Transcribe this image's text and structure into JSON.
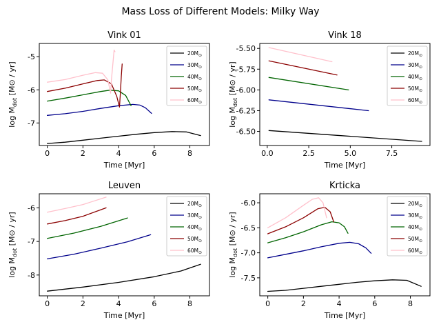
{
  "figure": {
    "suptitle": "Mass Loss of Different Models: Milky Way"
  },
  "chart_data": [
    {
      "type": "line",
      "title": "Vink 01",
      "xlabel": "Time [Myr]",
      "ylabel": "log M_dot [M_sun / yr]",
      "xlim": [
        -0.45,
        9.1
      ],
      "ylim": [
        -7.68,
        -4.6
      ],
      "xticks": [
        0,
        2,
        4,
        6,
        8
      ],
      "xtick_labels": [
        "0",
        "2",
        "4",
        "6",
        "8"
      ],
      "yticks": [
        -7,
        -6,
        -5
      ],
      "ytick_labels": [
        "-7",
        "-6",
        "-5"
      ],
      "grid": false,
      "legend_position": "top-right",
      "series": [
        {
          "name": "20",
          "color": "#000000",
          "x": [
            0,
            1,
            2,
            3,
            4,
            5,
            6,
            7,
            7.8,
            8.6
          ],
          "y": [
            -7.62,
            -7.58,
            -7.52,
            -7.46,
            -7.4,
            -7.34,
            -7.29,
            -7.26,
            -7.27,
            -7.38
          ]
        },
        {
          "name": "30",
          "color": "#00008b",
          "x": [
            0,
            1,
            2,
            3,
            4,
            4.8,
            5.2,
            5.5,
            5.85
          ],
          "y": [
            -6.77,
            -6.72,
            -6.65,
            -6.56,
            -6.48,
            -6.44,
            -6.46,
            -6.54,
            -6.71
          ]
        },
        {
          "name": "40",
          "color": "#006400",
          "x": [
            0,
            1,
            2,
            3,
            3.5,
            4.0,
            4.4,
            4.7
          ],
          "y": [
            -6.34,
            -6.25,
            -6.15,
            -6.05,
            -6.01,
            -6.03,
            -6.17,
            -6.48
          ]
        },
        {
          "name": "50",
          "color": "#8b0000",
          "x": [
            0,
            1,
            2,
            2.8,
            3.2,
            3.6,
            3.9,
            4.05,
            4.1,
            4.15,
            4.2
          ],
          "y": [
            -6.05,
            -5.95,
            -5.82,
            -5.72,
            -5.7,
            -5.82,
            -6.2,
            -6.52,
            -6.1,
            -5.6,
            -5.22
          ]
        },
        {
          "name": "60",
          "color": "#ffc0cb",
          "x": [
            0,
            1,
            2,
            2.7,
            3.1,
            3.4,
            3.55,
            3.6,
            3.7,
            3.75,
            3.8
          ],
          "y": [
            -5.77,
            -5.69,
            -5.56,
            -5.48,
            -5.5,
            -5.7,
            -6.1,
            -5.7,
            -5.1,
            -4.8,
            -4.85
          ]
        }
      ]
    },
    {
      "type": "line",
      "title": "Vink 18",
      "xlabel": "Time [Myr]",
      "ylabel": "log M_dot [M_sun / yr]",
      "xlim": [
        -0.45,
        9.8
      ],
      "ylim": [
        -6.67,
        -5.44
      ],
      "xticks": [
        0,
        2.5,
        5,
        7.5
      ],
      "xtick_labels": [
        "0.0",
        "2.5",
        "5.0",
        "7.5"
      ],
      "yticks": [
        -6.5,
        -6.25,
        -6.0,
        -5.75,
        -5.5
      ],
      "ytick_labels": [
        "-6.50",
        "-6.25",
        "-6.00",
        "-5.75",
        "-5.50"
      ],
      "grid": false,
      "legend_position": "top-right",
      "series": [
        {
          "name": "20",
          "color": "#000000",
          "x": [
            0.1,
            9.3
          ],
          "y": [
            -6.49,
            -6.62
          ]
        },
        {
          "name": "30",
          "color": "#00008b",
          "x": [
            0.1,
            6.1
          ],
          "y": [
            -6.12,
            -6.25
          ]
        },
        {
          "name": "40",
          "color": "#006400",
          "x": [
            0.1,
            4.9
          ],
          "y": [
            -5.85,
            -6.0
          ]
        },
        {
          "name": "50",
          "color": "#8b0000",
          "x": [
            0.1,
            4.2
          ],
          "y": [
            -5.65,
            -5.82
          ]
        },
        {
          "name": "60",
          "color": "#ffc0cb",
          "x": [
            0.1,
            3.9
          ],
          "y": [
            -5.49,
            -5.66
          ]
        }
      ]
    },
    {
      "type": "line",
      "title": "Leuven",
      "xlabel": "Time [Myr]",
      "ylabel": "log M_dot [M_sun / yr]",
      "xlim": [
        -0.45,
        9.1
      ],
      "ylim": [
        -8.62,
        -5.58
      ],
      "xticks": [
        0,
        2,
        4,
        6,
        8
      ],
      "xtick_labels": [
        "0",
        "2",
        "4",
        "6",
        "8"
      ],
      "yticks": [
        -8,
        -7,
        -6
      ],
      "ytick_labels": [
        "-8",
        "-7",
        "-6"
      ],
      "grid": false,
      "legend_position": "top-right",
      "series": [
        {
          "name": "20",
          "color": "#000000",
          "x": [
            0,
            2,
            4,
            6,
            7.5,
            8.6
          ],
          "y": [
            -8.48,
            -8.36,
            -8.22,
            -8.05,
            -7.88,
            -7.68
          ]
        },
        {
          "name": "30",
          "color": "#00008b",
          "x": [
            0,
            1.5,
            3,
            4.5,
            5.8
          ],
          "y": [
            -7.52,
            -7.38,
            -7.2,
            -7.01,
            -6.8
          ]
        },
        {
          "name": "40",
          "color": "#006400",
          "x": [
            0,
            1.5,
            3,
            4.5
          ],
          "y": [
            -6.91,
            -6.75,
            -6.55,
            -6.3
          ]
        },
        {
          "name": "50",
          "color": "#8b0000",
          "x": [
            0,
            1,
            2,
            3.3
          ],
          "y": [
            -6.48,
            -6.38,
            -6.25,
            -6.0
          ]
        },
        {
          "name": "60",
          "color": "#ffc0cb",
          "x": [
            0,
            1,
            2,
            3.3
          ],
          "y": [
            -6.13,
            -6.02,
            -5.9,
            -5.68
          ]
        }
      ]
    },
    {
      "type": "line",
      "title": "Krticka",
      "xlabel": "Time [Myr]",
      "ylabel": "log M_dot [M_sun / yr]",
      "xlim": [
        -0.45,
        9.1
      ],
      "ylim": [
        -7.86,
        -5.82
      ],
      "xticks": [
        0,
        2,
        4,
        6,
        8
      ],
      "xtick_labels": [
        "0",
        "2",
        "4",
        "6",
        "8"
      ],
      "yticks": [
        -7.5,
        -7.0,
        -6.5,
        -6.0
      ],
      "ytick_labels": [
        "-7.5",
        "-7.0",
        "-6.5",
        "-6.0"
      ],
      "grid": false,
      "legend_position": "top-right",
      "series": [
        {
          "name": "20",
          "color": "#000000",
          "x": [
            0,
            1,
            2,
            3,
            4,
            5,
            6,
            7,
            7.8,
            8.6
          ],
          "y": [
            -7.77,
            -7.75,
            -7.71,
            -7.67,
            -7.63,
            -7.59,
            -7.56,
            -7.54,
            -7.55,
            -7.67
          ]
        },
        {
          "name": "30",
          "color": "#00008b",
          "x": [
            0,
            1,
            2,
            3,
            4,
            4.6,
            5.1,
            5.5,
            5.8
          ],
          "y": [
            -7.1,
            -7.03,
            -6.96,
            -6.88,
            -6.81,
            -6.79,
            -6.82,
            -6.9,
            -7.01
          ]
        },
        {
          "name": "40",
          "color": "#006400",
          "x": [
            0,
            1,
            2,
            3,
            3.6,
            4.0,
            4.3,
            4.5
          ],
          "y": [
            -6.8,
            -6.7,
            -6.58,
            -6.44,
            -6.38,
            -6.4,
            -6.48,
            -6.61
          ]
        },
        {
          "name": "50",
          "color": "#8b0000",
          "x": [
            0,
            1,
            2,
            2.8,
            3.2,
            3.5,
            3.7
          ],
          "y": [
            -6.62,
            -6.48,
            -6.3,
            -6.12,
            -6.09,
            -6.18,
            -6.38
          ]
        },
        {
          "name": "60",
          "color": "#ffc0cb",
          "x": [
            0,
            1,
            2,
            2.5,
            2.85,
            3.1,
            3.3
          ],
          "y": [
            -6.5,
            -6.3,
            -6.05,
            -5.93,
            -5.9,
            -6.0,
            -6.3
          ]
        }
      ]
    }
  ]
}
